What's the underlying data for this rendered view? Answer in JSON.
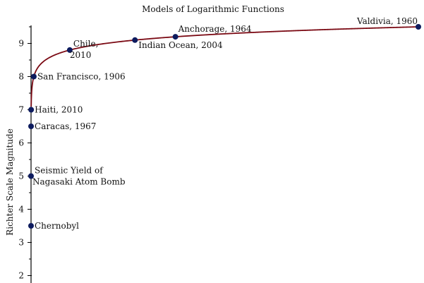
{
  "chart_data": {
    "type": "scatter",
    "title": "Models of Logarithmic Functions",
    "xlabel": "",
    "ylabel": "Richter Scale Magnitude",
    "ylim": [
      1.8,
      9.55
    ],
    "yticks": [
      2,
      3,
      4,
      5,
      6,
      7,
      8,
      9
    ],
    "grid": false,
    "curve_color": "#7b0a14",
    "point_color": "#0d1b5e",
    "points": [
      {
        "label": [
          "Chernobyl"
        ],
        "y": 3.5
      },
      {
        "label": [
          "Seismic Yield of",
          "Nagasaki Atom Bomb"
        ],
        "y": 5.0
      },
      {
        "label": [
          "Caracas, 1967"
        ],
        "y": 6.5
      },
      {
        "label": [
          "Haiti, 2010"
        ],
        "y": 7.0
      },
      {
        "label": [
          "San Francisco, 1906"
        ],
        "y": 8.0
      },
      {
        "label": [
          "Chile,",
          "2010"
        ],
        "y": 8.8
      },
      {
        "label": [
          "Indian Ocean, 2004"
        ],
        "y": 9.1
      },
      {
        "label": [
          "Anchorage, 1964"
        ],
        "y": 9.2
      },
      {
        "label": [
          "Valdivia, 1960"
        ],
        "y": 9.5
      }
    ]
  }
}
